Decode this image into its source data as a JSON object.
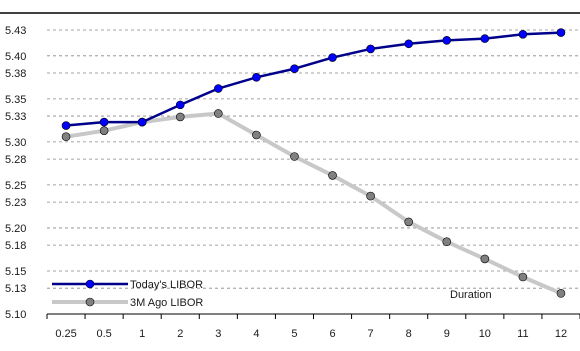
{
  "chart_data": {
    "type": "line",
    "categories": [
      "0.25",
      "0.5",
      "1",
      "2",
      "3",
      "4",
      "5",
      "6",
      "7",
      "8",
      "9",
      "10",
      "11",
      "12"
    ],
    "y_ticks": [
      "5.10",
      "5.13",
      "5.15",
      "5.18",
      "5.20",
      "5.23",
      "5.25",
      "5.28",
      "5.30",
      "5.33",
      "5.35",
      "5.38",
      "5.40",
      "5.43"
    ],
    "ylim": [
      5.1,
      5.43
    ],
    "grid": "horizontal dashed",
    "legend_position": "bottom-left",
    "annotation": "Duration",
    "series": [
      {
        "name": "Today's LIBOR",
        "color": "#00008b",
        "marker_color": "#0000ff",
        "values": [
          5.319,
          5.323,
          5.323,
          5.343,
          5.362,
          5.375,
          5.385,
          5.398,
          5.408,
          5.414,
          5.418,
          5.42,
          5.425,
          5.427
        ]
      },
      {
        "name": "3M Ago LIBOR",
        "color": "#c8c8c8",
        "marker_color": "#808080",
        "values": [
          5.306,
          5.313,
          5.323,
          5.329,
          5.333,
          5.308,
          5.283,
          5.261,
          5.237,
          5.207,
          5.184,
          5.164,
          5.143,
          5.124
        ]
      }
    ]
  }
}
